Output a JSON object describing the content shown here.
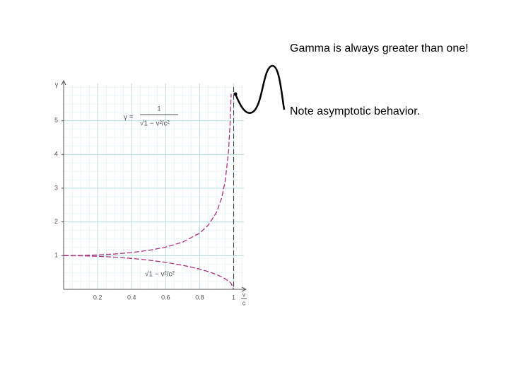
{
  "chart_data": {
    "type": "line",
    "x": [
      0,
      0.1,
      0.2,
      0.3,
      0.4,
      0.5,
      0.6,
      0.7,
      0.8,
      0.85,
      0.9,
      0.93,
      0.95,
      0.97,
      0.98,
      0.985,
      1
    ],
    "series": [
      {
        "name": "γ",
        "color": "#b0307f",
        "values": [
          1,
          1.005,
          1.021,
          1.048,
          1.091,
          1.155,
          1.25,
          1.4,
          1.667,
          1.898,
          2.294,
          2.721,
          3.203,
          4.113,
          5.025,
          5.795,
          null
        ]
      },
      {
        "name": "√1 − v²/c²",
        "color": "#b0307f",
        "values": [
          1,
          0.995,
          0.98,
          0.954,
          0.917,
          0.866,
          0.8,
          0.714,
          0.6,
          0.527,
          0.436,
          0.368,
          0.312,
          0.243,
          0.199,
          0.173,
          0
        ]
      }
    ],
    "xlim": [
      0,
      1.06
    ],
    "ylim": [
      0,
      6
    ],
    "xticks": [
      0.2,
      0.4,
      0.6,
      0.8,
      1
    ],
    "yticks": [
      1,
      2,
      3,
      4,
      5
    ],
    "grid": true,
    "y_label": "γ",
    "x_label": {
      "numerator": "v",
      "denominator": "c"
    },
    "formula_gamma": {
      "lhs": "γ =",
      "numerator": "1",
      "denominator": "√1 − v²/c²"
    },
    "annotations": [
      "Gamma is always greater than one!",
      "Note asymptotic behavior."
    ]
  }
}
